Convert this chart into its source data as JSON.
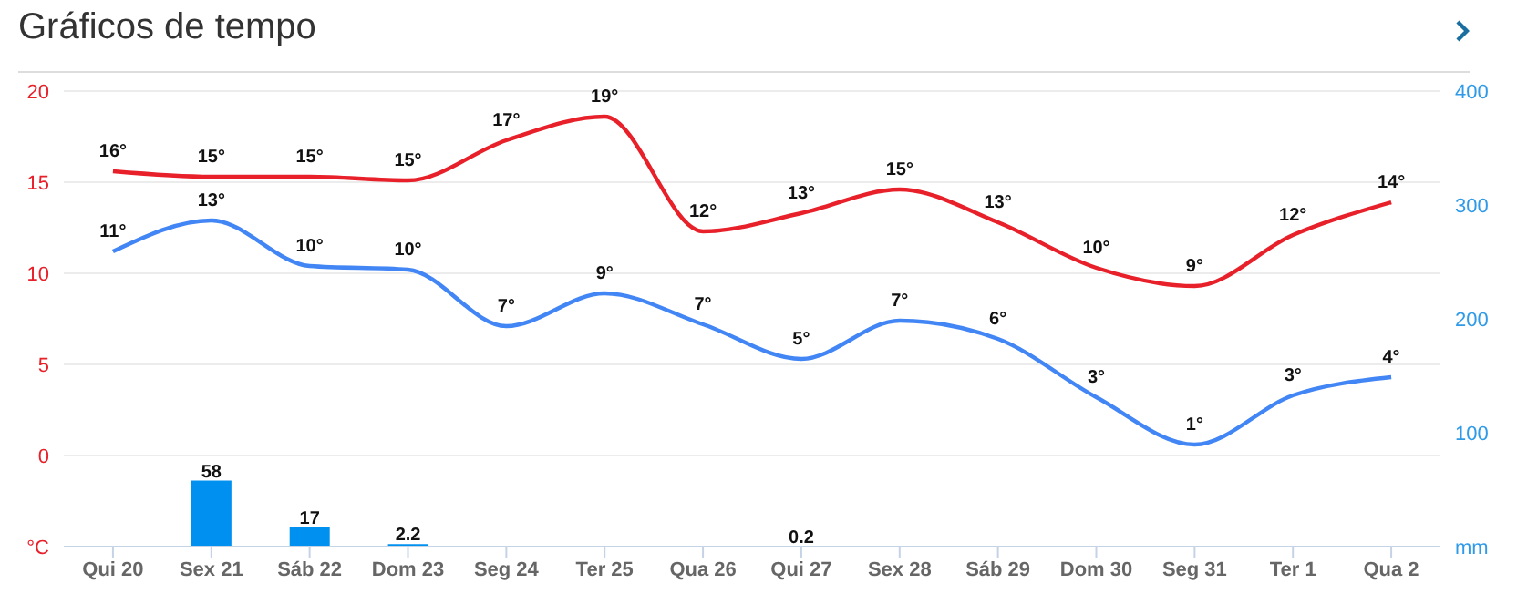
{
  "chart_data": {
    "type": "line",
    "title": "Gráficos de tempo",
    "categories": [
      "Qui 20",
      "Sex 21",
      "Sáb 22",
      "Dom 23",
      "Seg 24",
      "Ter 25",
      "Qua 26",
      "Qui 27",
      "Sex 28",
      "Sáb 29",
      "Dom 30",
      "Seg 31",
      "Ter 1",
      "Qua 2"
    ],
    "series": [
      {
        "color": "#e8202a",
        "values": [
          15.6,
          15.3,
          15.3,
          15.1,
          17.3,
          18.6,
          12.3,
          13.3,
          14.6,
          12.8,
          10.3,
          9.3,
          12.1,
          13.9
        ],
        "value_labels": [
          "16°",
          "15°",
          "15°",
          "15°",
          "17°",
          "19°",
          "12°",
          "13°",
          "15°",
          "13°",
          "10°",
          "9°",
          "12°",
          "14°"
        ]
      },
      {
        "color": "#4285f4",
        "values": [
          11.2,
          12.9,
          10.4,
          10.2,
          7.1,
          8.9,
          7.2,
          5.3,
          7.4,
          6.4,
          3.2,
          0.6,
          3.3,
          4.3
        ],
        "value_labels": [
          "11°",
          "13°",
          "10°",
          "10°",
          "7°",
          "9°",
          "7°",
          "5°",
          "7°",
          "6°",
          "3°",
          "1°",
          "3°",
          "4°"
        ]
      },
      {
        "type": "bar",
        "axis": "y2",
        "color": "#0091f0",
        "values": [
          null,
          58,
          17,
          2.2,
          null,
          null,
          null,
          0.2,
          null,
          null,
          null,
          null,
          null,
          null
        ],
        "value_labels": [
          null,
          "58",
          "17",
          "2.2",
          null,
          null,
          null,
          "0.2",
          null,
          null,
          null,
          null,
          null,
          null
        ]
      }
    ],
    "ylim": [
      -5,
      20
    ],
    "yticks": [
      {
        "value": -5,
        "label": "°C"
      },
      0,
      5,
      10,
      15,
      20
    ],
    "y2lim": [
      0,
      400
    ],
    "y2ticks": [
      {
        "value": 0,
        "label": "mm"
      },
      100,
      200,
      300,
      400
    ],
    "grid": "y",
    "legend": false,
    "marker": "none",
    "line_style": "solid"
  }
}
